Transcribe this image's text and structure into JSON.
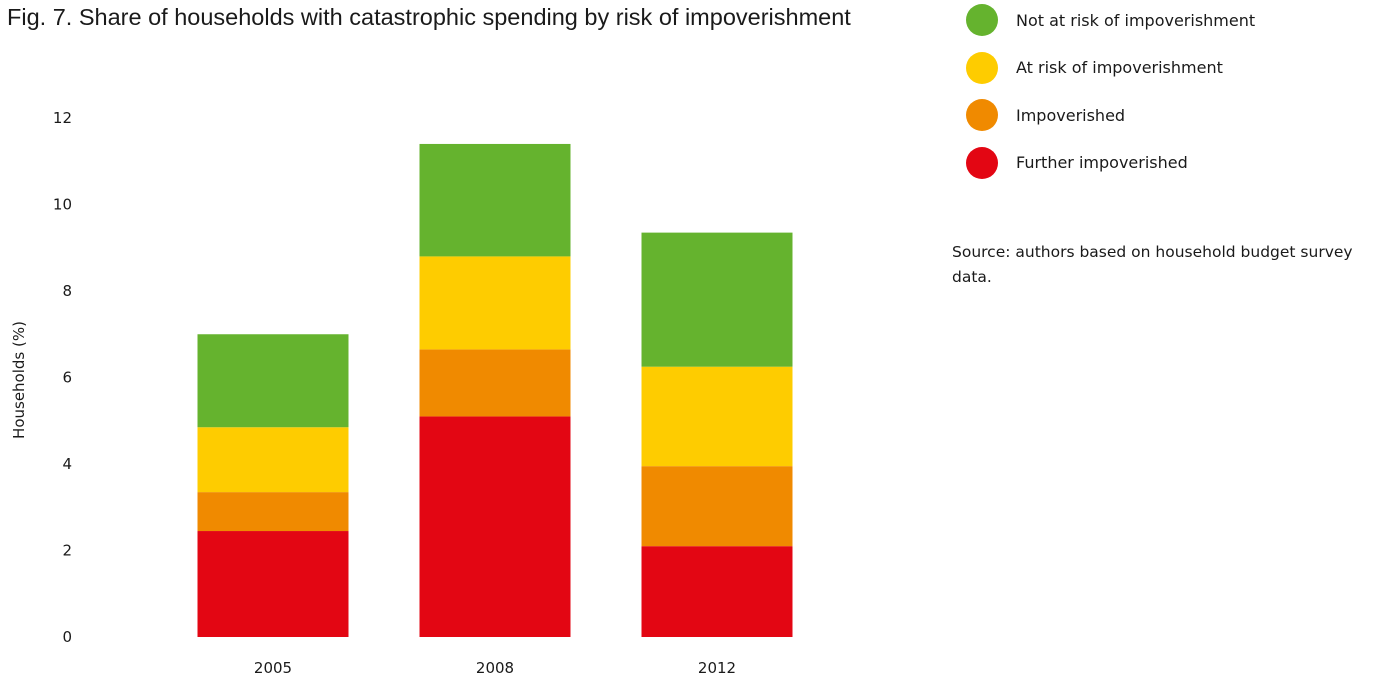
{
  "title": "Fig. 7. Share of households with catastrophic spending by risk of impoverishment",
  "source_note": "Source: authors based on household budget survey data.",
  "chart_data": {
    "type": "bar",
    "stacked": true,
    "categories": [
      "2005",
      "2008",
      "2012"
    ],
    "series": [
      {
        "name": "Further impoverished",
        "color": "#e30613",
        "values": [
          2.45,
          5.1,
          2.1
        ]
      },
      {
        "name": "Impoverished",
        "color": "#f08a00",
        "values": [
          0.9,
          1.55,
          1.85
        ]
      },
      {
        "name": "At risk of impoverishment",
        "color": "#fecc00",
        "values": [
          1.5,
          2.15,
          2.3
        ]
      },
      {
        "name": "Not at risk of impoverishment",
        "color": "#65b32e",
        "values": [
          2.15,
          2.6,
          3.1
        ]
      }
    ],
    "legend_order": [
      "Not at risk of impoverishment",
      "At risk of impoverishment",
      "Impoverished",
      "Further impoverished"
    ],
    "title": "Fig. 7. Share of households with catastrophic spending by risk of impoverishment",
    "xlabel": "",
    "ylabel": "Households (%)",
    "ylim": [
      0,
      12
    ],
    "yticks": [
      0,
      2,
      4,
      6,
      8,
      10,
      12
    ],
    "grid": false,
    "legend_position": "top-right"
  }
}
